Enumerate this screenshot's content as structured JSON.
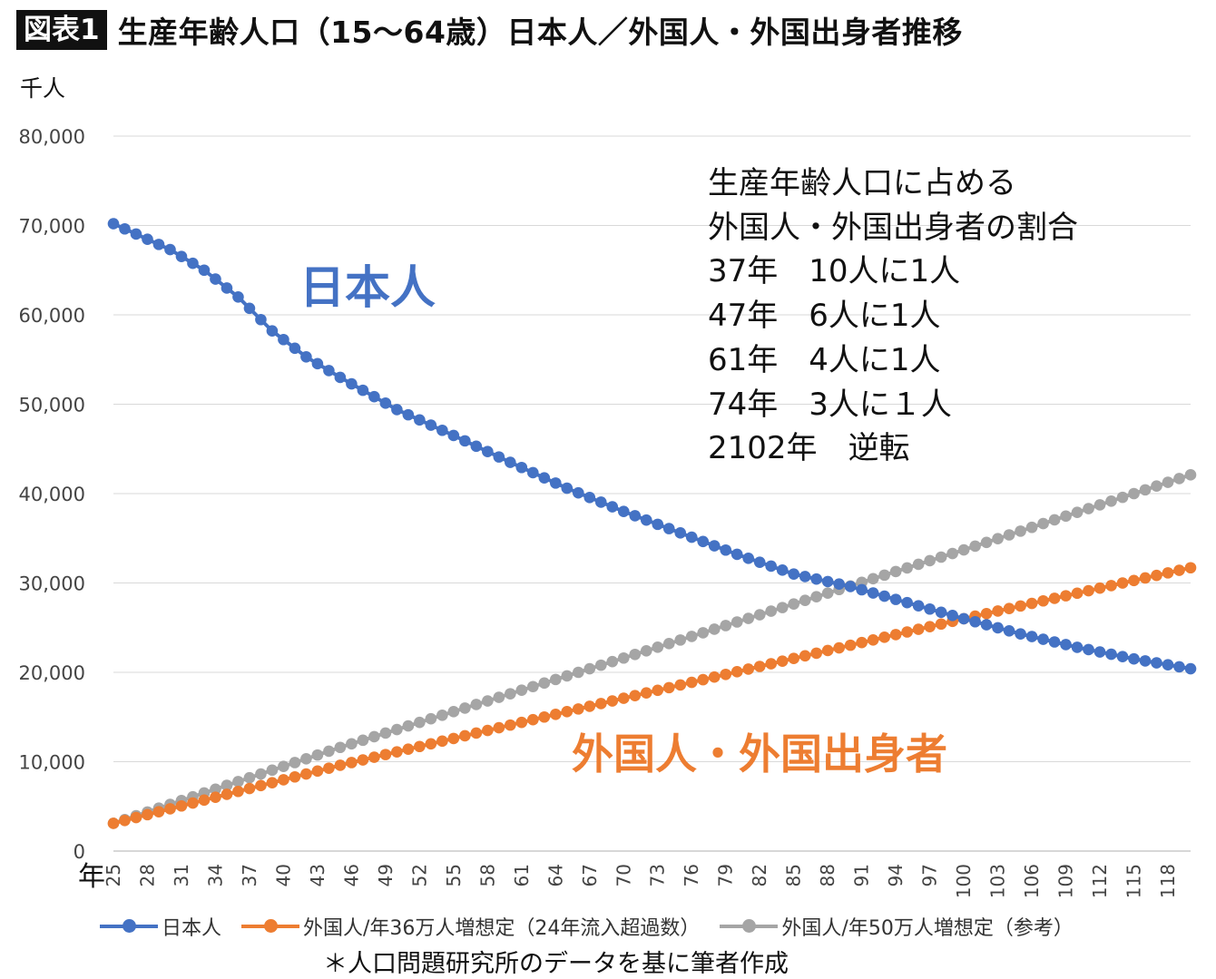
{
  "header": {
    "badge": "図表1",
    "title": "生産年齢人口（15〜64歳）日本人／外国人・外国出身者推移"
  },
  "chart_data": {
    "type": "line",
    "unit_label": "千人",
    "x_axis_label": "年",
    "x_start": 25,
    "x_end": 120,
    "x_tick_labels": [
      "25",
      "28",
      "31",
      "34",
      "37",
      "40",
      "43",
      "46",
      "49",
      "52",
      "55",
      "58",
      "61",
      "64",
      "67",
      "70",
      "73",
      "76",
      "79",
      "82",
      "85",
      "88",
      "91",
      "94",
      "97",
      "100",
      "103",
      "106",
      "109",
      "112",
      "115",
      "118"
    ],
    "ylim": [
      0,
      80000
    ],
    "y_tick_labels": [
      "0",
      "10,000",
      "20,000",
      "30,000",
      "40,000",
      "50,000",
      "60,000",
      "70,000",
      "80,000"
    ],
    "grid": true,
    "legend_position": "bottom",
    "series": [
      {
        "name": "日本人",
        "color": "#4472c4",
        "anchors": [
          [
            25,
            70200
          ],
          [
            30,
            67300
          ],
          [
            33,
            65000
          ],
          [
            36,
            62000
          ],
          [
            39,
            58200
          ],
          [
            42,
            55300
          ],
          [
            45,
            53000
          ],
          [
            50,
            49400
          ],
          [
            55,
            46500
          ],
          [
            60,
            43500
          ],
          [
            65,
            40600
          ],
          [
            70,
            38000
          ],
          [
            75,
            35600
          ],
          [
            80,
            33200
          ],
          [
            85,
            31000
          ],
          [
            90,
            29600
          ],
          [
            95,
            27800
          ],
          [
            100,
            26000
          ],
          [
            105,
            24300
          ],
          [
            110,
            22800
          ],
          [
            115,
            21500
          ],
          [
            120,
            20400
          ]
        ]
      },
      {
        "name": "外国人/年36万人増想定（24年流入超過数）",
        "color": "#ed7d31",
        "anchors": [
          [
            25,
            3100
          ],
          [
            45,
            9600
          ],
          [
            70,
            17100
          ],
          [
            100,
            26000
          ],
          [
            120,
            31700
          ]
        ]
      },
      {
        "name": "外国人/年50万人増想定（参考）",
        "color": "#a5a5a5",
        "anchors": [
          [
            25,
            3100
          ],
          [
            45,
            11600
          ],
          [
            70,
            21600
          ],
          [
            100,
            33700
          ],
          [
            120,
            42100
          ]
        ]
      }
    ],
    "annotations": {
      "japanese_label": "日本人",
      "foreign_label": "外国人・外国出身者"
    }
  },
  "note": {
    "lines": [
      "生産年齢人口に占める",
      "外国人・外国出身者の割合",
      "37年　10人に1人",
      "47年　6人に1人",
      "61年　4人に1人",
      "74年　3人に１人",
      "2102年　逆転"
    ]
  },
  "footnote": "＊人口問題研究所のデータを基に筆者作成"
}
